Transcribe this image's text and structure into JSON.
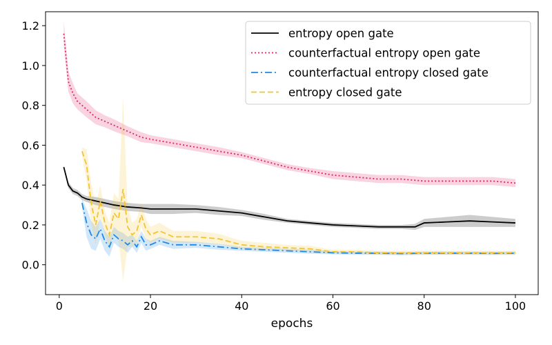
{
  "chart_data": {
    "type": "line",
    "xlabel": "epochs",
    "ylabel": "",
    "xlim": [
      -3,
      105
    ],
    "ylim": [
      -0.15,
      1.27
    ],
    "xticks": [
      0,
      20,
      40,
      60,
      80,
      100
    ],
    "yticks": [
      0.0,
      0.2,
      0.4,
      0.6,
      0.8,
      1.0,
      1.2
    ],
    "xtick_labels": [
      "0",
      "20",
      "40",
      "60",
      "80",
      "100"
    ],
    "ytick_labels": [
      "0.0",
      "0.2",
      "0.4",
      "0.6",
      "0.8",
      "1.0",
      "1.2"
    ],
    "grid": false,
    "legend_position": "top-right",
    "series": [
      {
        "name": "entropy open gate",
        "color": "#000000",
        "style": "solid",
        "x": [
          1,
          2,
          3,
          4,
          5,
          6,
          8,
          10,
          12,
          15,
          18,
          20,
          22,
          25,
          30,
          35,
          40,
          45,
          50,
          55,
          60,
          65,
          70,
          75,
          78,
          80,
          85,
          90,
          95,
          100
        ],
        "y": [
          0.49,
          0.4,
          0.37,
          0.36,
          0.34,
          0.33,
          0.32,
          0.31,
          0.3,
          0.29,
          0.285,
          0.28,
          0.28,
          0.28,
          0.28,
          0.27,
          0.26,
          0.24,
          0.22,
          0.21,
          0.2,
          0.195,
          0.19,
          0.19,
          0.19,
          0.21,
          0.215,
          0.22,
          0.215,
          0.21
        ],
        "band": [
          0.01,
          0.015,
          0.015,
          0.015,
          0.015,
          0.015,
          0.02,
          0.02,
          0.02,
          0.02,
          0.02,
          0.025,
          0.025,
          0.025,
          0.02,
          0.02,
          0.015,
          0.015,
          0.01,
          0.01,
          0.01,
          0.01,
          0.01,
          0.01,
          0.015,
          0.02,
          0.025,
          0.03,
          0.025,
          0.02
        ]
      },
      {
        "name": "counterfactual entropy open gate",
        "color": "#e0245e",
        "style": "dotted",
        "x": [
          1,
          2,
          3,
          4,
          5,
          6,
          8,
          10,
          12,
          15,
          18,
          20,
          25,
          30,
          35,
          40,
          45,
          50,
          55,
          60,
          65,
          70,
          75,
          80,
          85,
          90,
          95,
          100
        ],
        "y": [
          1.16,
          0.92,
          0.86,
          0.82,
          0.8,
          0.78,
          0.74,
          0.72,
          0.7,
          0.67,
          0.64,
          0.63,
          0.61,
          0.59,
          0.57,
          0.55,
          0.52,
          0.49,
          0.47,
          0.45,
          0.44,
          0.43,
          0.43,
          0.42,
          0.42,
          0.42,
          0.42,
          0.41
        ],
        "band": [
          0.06,
          0.05,
          0.05,
          0.04,
          0.04,
          0.04,
          0.035,
          0.03,
          0.03,
          0.025,
          0.025,
          0.02,
          0.02,
          0.02,
          0.02,
          0.015,
          0.015,
          0.015,
          0.015,
          0.02,
          0.02,
          0.02,
          0.02,
          0.02,
          0.02,
          0.02,
          0.02,
          0.02
        ]
      },
      {
        "name": "counterfactual entropy closed gate",
        "color": "#1e88e5",
        "style": "dashdot",
        "x": [
          5,
          6,
          7,
          8,
          9,
          10,
          11,
          12,
          13,
          14,
          15,
          16,
          17,
          18,
          19,
          20,
          22,
          25,
          30,
          35,
          40,
          45,
          50,
          55,
          60,
          65,
          70,
          75,
          80,
          85,
          90,
          95,
          100
        ],
        "y": [
          0.31,
          0.21,
          0.15,
          0.13,
          0.18,
          0.12,
          0.09,
          0.15,
          0.13,
          0.12,
          0.1,
          0.12,
          0.09,
          0.14,
          0.1,
          0.1,
          0.12,
          0.1,
          0.1,
          0.09,
          0.08,
          0.075,
          0.07,
          0.065,
          0.06,
          0.058,
          0.058,
          0.056,
          0.058,
          0.058,
          0.058,
          0.057,
          0.058
        ],
        "band": [
          0.02,
          0.07,
          0.07,
          0.06,
          0.05,
          0.05,
          0.05,
          0.04,
          0.04,
          0.04,
          0.04,
          0.03,
          0.03,
          0.03,
          0.03,
          0.02,
          0.02,
          0.02,
          0.015,
          0.015,
          0.01,
          0.01,
          0.01,
          0.01,
          0.008,
          0.008,
          0.008,
          0.008,
          0.008,
          0.008,
          0.008,
          0.008,
          0.008
        ]
      },
      {
        "name": "entropy closed gate",
        "color": "#f4c430",
        "style": "dashed",
        "x": [
          5,
          6,
          7,
          8,
          9,
          10,
          11,
          12,
          13,
          14,
          15,
          16,
          17,
          18,
          19,
          20,
          22,
          25,
          30,
          35,
          40,
          45,
          50,
          55,
          60,
          65,
          70,
          75,
          80,
          85,
          90,
          95,
          100
        ],
        "y": [
          0.57,
          0.5,
          0.31,
          0.2,
          0.32,
          0.21,
          0.15,
          0.26,
          0.23,
          0.38,
          0.19,
          0.15,
          0.17,
          0.25,
          0.18,
          0.15,
          0.17,
          0.14,
          0.14,
          0.13,
          0.1,
          0.09,
          0.085,
          0.08,
          0.065,
          0.065,
          0.06,
          0.06,
          0.06,
          0.06,
          0.06,
          0.06,
          0.06
        ],
        "band": [
          0.02,
          0.08,
          0.1,
          0.1,
          0.08,
          0.06,
          0.06,
          0.1,
          0.1,
          0.46,
          0.1,
          0.06,
          0.06,
          0.06,
          0.05,
          0.04,
          0.04,
          0.03,
          0.03,
          0.025,
          0.02,
          0.02,
          0.015,
          0.015,
          0.01,
          0.01,
          0.01,
          0.01,
          0.01,
          0.01,
          0.01,
          0.01,
          0.01
        ]
      }
    ]
  }
}
